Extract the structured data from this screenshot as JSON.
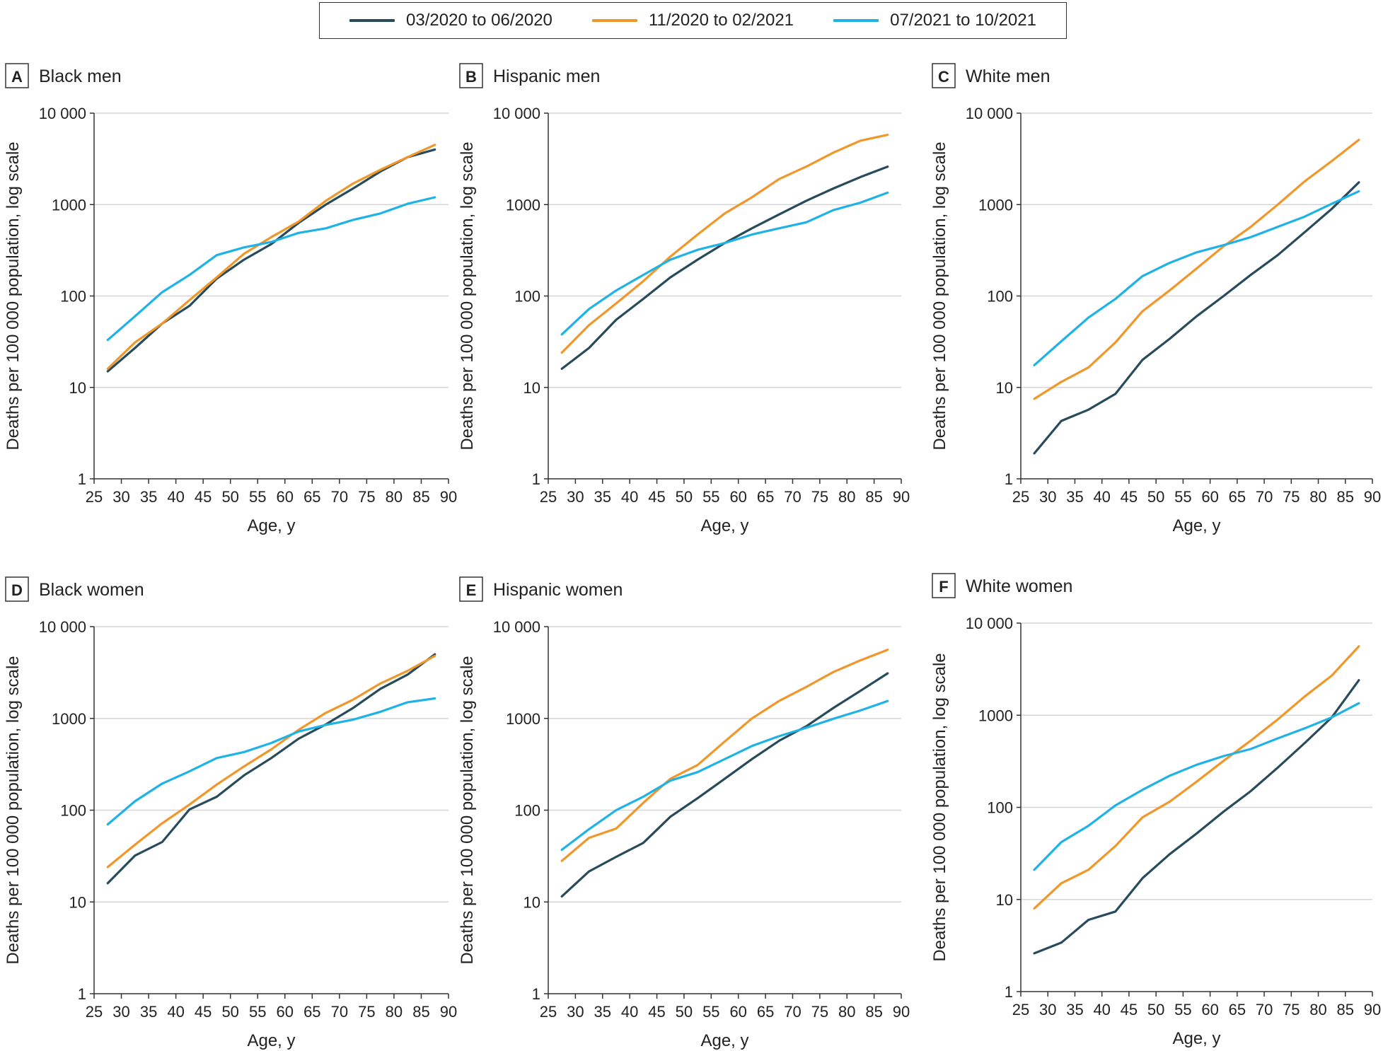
{
  "legend": [
    {
      "label": "03/2020 to 06/2020",
      "color": "#284b5c"
    },
    {
      "label": "11/2020 to 02/2021",
      "color": "#f0972b"
    },
    {
      "label": "07/2021 to 10/2021",
      "color": "#1fb2e6"
    }
  ],
  "axes": {
    "xlabel": "Age, y",
    "ylabel": "Deaths per 100 000 population, log scale",
    "xticks": [
      "25",
      "30",
      "35",
      "40",
      "45",
      "50",
      "55",
      "60",
      "65",
      "70",
      "75",
      "80",
      "85",
      "90"
    ],
    "yticks": [
      "1",
      "10",
      "100",
      "1000",
      "10 000"
    ]
  },
  "chart_data": [
    {
      "type": "line",
      "panel": "A",
      "title": "Black men",
      "xlim": [
        25,
        90
      ],
      "ylim": [
        1,
        10000
      ],
      "yscale": "log",
      "x": [
        27.5,
        32.5,
        37.5,
        42.5,
        47.5,
        52.5,
        57.5,
        62.5,
        67.5,
        72.5,
        77.5,
        82.5,
        87.5
      ],
      "series": [
        {
          "name": "03/2020 to 06/2020",
          "values": [
            15,
            27,
            50,
            78,
            155,
            250,
            370,
            630,
            1000,
            1500,
            2300,
            3300,
            4000
          ]
        },
        {
          "name": "11/2020 to 02/2021",
          "values": [
            16,
            31,
            50,
            90,
            160,
            290,
            440,
            650,
            1100,
            1700,
            2400,
            3300,
            4500
          ]
        },
        {
          "name": "07/2021 to 10/2021",
          "values": [
            33,
            60,
            110,
            170,
            280,
            340,
            390,
            490,
            550,
            680,
            800,
            1020,
            1200
          ]
        }
      ]
    },
    {
      "type": "line",
      "panel": "B",
      "title": "Hispanic men",
      "xlim": [
        25,
        90
      ],
      "ylim": [
        1,
        10000
      ],
      "yscale": "log",
      "x": [
        27.5,
        32.5,
        37.5,
        42.5,
        47.5,
        52.5,
        57.5,
        62.5,
        67.5,
        72.5,
        77.5,
        82.5,
        87.5
      ],
      "series": [
        {
          "name": "03/2020 to 06/2020",
          "values": [
            16,
            27,
            55,
            93,
            160,
            250,
            380,
            550,
            780,
            1100,
            1500,
            2000,
            2600
          ]
        },
        {
          "name": "11/2020 to 02/2021",
          "values": [
            24,
            48,
            83,
            145,
            270,
            470,
            800,
            1200,
            1900,
            2600,
            3700,
            5000,
            5800
          ]
        },
        {
          "name": "07/2021 to 10/2021",
          "values": [
            38,
            72,
            115,
            170,
            250,
            320,
            380,
            470,
            550,
            640,
            870,
            1050,
            1350
          ]
        }
      ]
    },
    {
      "type": "line",
      "panel": "C",
      "title": "White men",
      "xlim": [
        25,
        90
      ],
      "ylim": [
        1,
        10000
      ],
      "yscale": "log",
      "x": [
        27.5,
        32.5,
        37.5,
        42.5,
        47.5,
        52.5,
        57.5,
        62.5,
        67.5,
        72.5,
        77.5,
        82.5,
        87.5
      ],
      "series": [
        {
          "name": "03/2020 to 06/2020",
          "values": [
            1.9,
            4.3,
            5.7,
            8.5,
            20,
            34,
            60,
            100,
            170,
            280,
            500,
            900,
            1750
          ]
        },
        {
          "name": "11/2020 to 02/2021",
          "values": [
            7.5,
            11.5,
            16.5,
            31,
            68,
            115,
            200,
            350,
            570,
            1000,
            1800,
            3000,
            5100
          ]
        },
        {
          "name": "07/2021 to 10/2021",
          "values": [
            17.5,
            32,
            58,
            93,
            165,
            230,
            300,
            360,
            440,
            570,
            740,
            1020,
            1400
          ]
        }
      ]
    },
    {
      "type": "line",
      "panel": "D",
      "title": "Black women",
      "xlim": [
        25,
        90
      ],
      "ylim": [
        1,
        10000
      ],
      "yscale": "log",
      "x": [
        27.5,
        32.5,
        37.5,
        42.5,
        47.5,
        52.5,
        57.5,
        62.5,
        67.5,
        72.5,
        77.5,
        82.5,
        87.5
      ],
      "series": [
        {
          "name": "03/2020 to 06/2020",
          "values": [
            16,
            32,
            45,
            102,
            140,
            240,
            370,
            600,
            860,
            1300,
            2100,
            3000,
            5000
          ]
        },
        {
          "name": "11/2020 to 02/2021",
          "values": [
            24,
            42,
            72,
            115,
            190,
            300,
            460,
            750,
            1150,
            1600,
            2400,
            3300,
            4800
          ]
        },
        {
          "name": "07/2021 to 10/2021",
          "values": [
            70,
            125,
            195,
            265,
            370,
            430,
            540,
            720,
            850,
            970,
            1180,
            1500,
            1650
          ]
        }
      ]
    },
    {
      "type": "line",
      "panel": "E",
      "title": "Hispanic women",
      "xlim": [
        25,
        90
      ],
      "ylim": [
        1,
        10000
      ],
      "yscale": "log",
      "x": [
        27.5,
        32.5,
        37.5,
        42.5,
        47.5,
        52.5,
        57.5,
        62.5,
        67.5,
        72.5,
        77.5,
        82.5,
        87.5
      ],
      "series": [
        {
          "name": "03/2020 to 06/2020",
          "values": [
            11.5,
            21.5,
            31,
            44,
            85,
            135,
            220,
            360,
            570,
            820,
            1300,
            2000,
            3100
          ]
        },
        {
          "name": "11/2020 to 02/2021",
          "values": [
            28,
            50,
            63,
            120,
            220,
            310,
            560,
            1000,
            1550,
            2200,
            3200,
            4300,
            5600
          ]
        },
        {
          "name": "07/2021 to 10/2021",
          "values": [
            37,
            62,
            100,
            140,
            210,
            260,
            360,
            500,
            640,
            790,
            990,
            1220,
            1550
          ]
        }
      ]
    },
    {
      "type": "line",
      "panel": "F",
      "title": "White women",
      "xlim": [
        25,
        90
      ],
      "ylim": [
        1,
        10000
      ],
      "yscale": "log",
      "x": [
        27.5,
        32.5,
        37.5,
        42.5,
        47.5,
        52.5,
        57.5,
        62.5,
        67.5,
        72.5,
        77.5,
        82.5,
        87.5
      ],
      "series": [
        {
          "name": "03/2020 to 06/2020",
          "values": [
            2.6,
            3.4,
            6,
            7.4,
            17,
            31,
            52,
            90,
            150,
            270,
            500,
            950,
            2400
          ]
        },
        {
          "name": "11/2020 to 02/2021",
          "values": [
            8,
            15,
            21,
            38,
            78,
            115,
            190,
            320,
            530,
            900,
            1600,
            2700,
            5600
          ]
        },
        {
          "name": "07/2021 to 10/2021",
          "values": [
            21,
            42,
            63,
            105,
            155,
            220,
            290,
            360,
            430,
            560,
            720,
            950,
            1350
          ]
        }
      ]
    }
  ]
}
